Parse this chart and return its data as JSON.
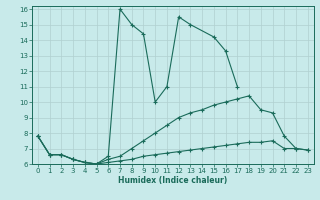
{
  "xlabel": "Humidex (Indice chaleur)",
  "xlim": [
    -0.5,
    23.5
  ],
  "ylim": [
    6,
    16.2
  ],
  "xticks": [
    0,
    1,
    2,
    3,
    4,
    5,
    6,
    7,
    8,
    9,
    10,
    11,
    12,
    13,
    14,
    15,
    16,
    17,
    18,
    19,
    20,
    21,
    22,
    23
  ],
  "yticks": [
    6,
    7,
    8,
    9,
    10,
    11,
    12,
    13,
    14,
    15,
    16
  ],
  "line_color": "#1a6b5a",
  "bg_color": "#c8eaea",
  "grid_color": "#b0d0d0",
  "series": [
    {
      "x": [
        0,
        1,
        2,
        3,
        4,
        5,
        6,
        7,
        8,
        9,
        10,
        11,
        12,
        13,
        14,
        15,
        16,
        17,
        18,
        19,
        20,
        21,
        22,
        23
      ],
      "y": [
        7.8,
        6.6,
        6.6,
        6.3,
        6.1,
        6.0,
        6.1,
        6.2,
        6.3,
        6.5,
        6.6,
        6.7,
        6.8,
        6.9,
        7.0,
        7.1,
        7.2,
        7.3,
        7.4,
        7.4,
        7.5,
        7.0,
        7.0,
        6.9
      ]
    },
    {
      "x": [
        0,
        1,
        2,
        3,
        4,
        5,
        6,
        7,
        8,
        9,
        10,
        11,
        12,
        13,
        14,
        15,
        16,
        17,
        18,
        19,
        20,
        21,
        22,
        23
      ],
      "y": [
        7.8,
        6.6,
        6.6,
        6.3,
        6.1,
        6.0,
        6.3,
        6.5,
        7.0,
        7.5,
        8.0,
        8.5,
        9.0,
        9.3,
        9.5,
        9.8,
        10.0,
        10.2,
        10.4,
        9.5,
        9.3,
        7.8,
        7.0,
        6.9
      ]
    },
    {
      "x": [
        0,
        1,
        2,
        3,
        4,
        5,
        6,
        7,
        8,
        9,
        10,
        11,
        12,
        13,
        14,
        15,
        16,
        17,
        18,
        19,
        20,
        21,
        22,
        23
      ],
      "y": [
        7.8,
        6.6,
        6.6,
        6.3,
        6.1,
        6.0,
        6.5,
        16.0,
        15.0,
        14.4,
        10.0,
        11.0,
        15.5,
        15.0,
        null,
        14.2,
        13.3,
        11.0,
        null,
        null,
        null,
        null,
        null,
        null
      ]
    }
  ]
}
